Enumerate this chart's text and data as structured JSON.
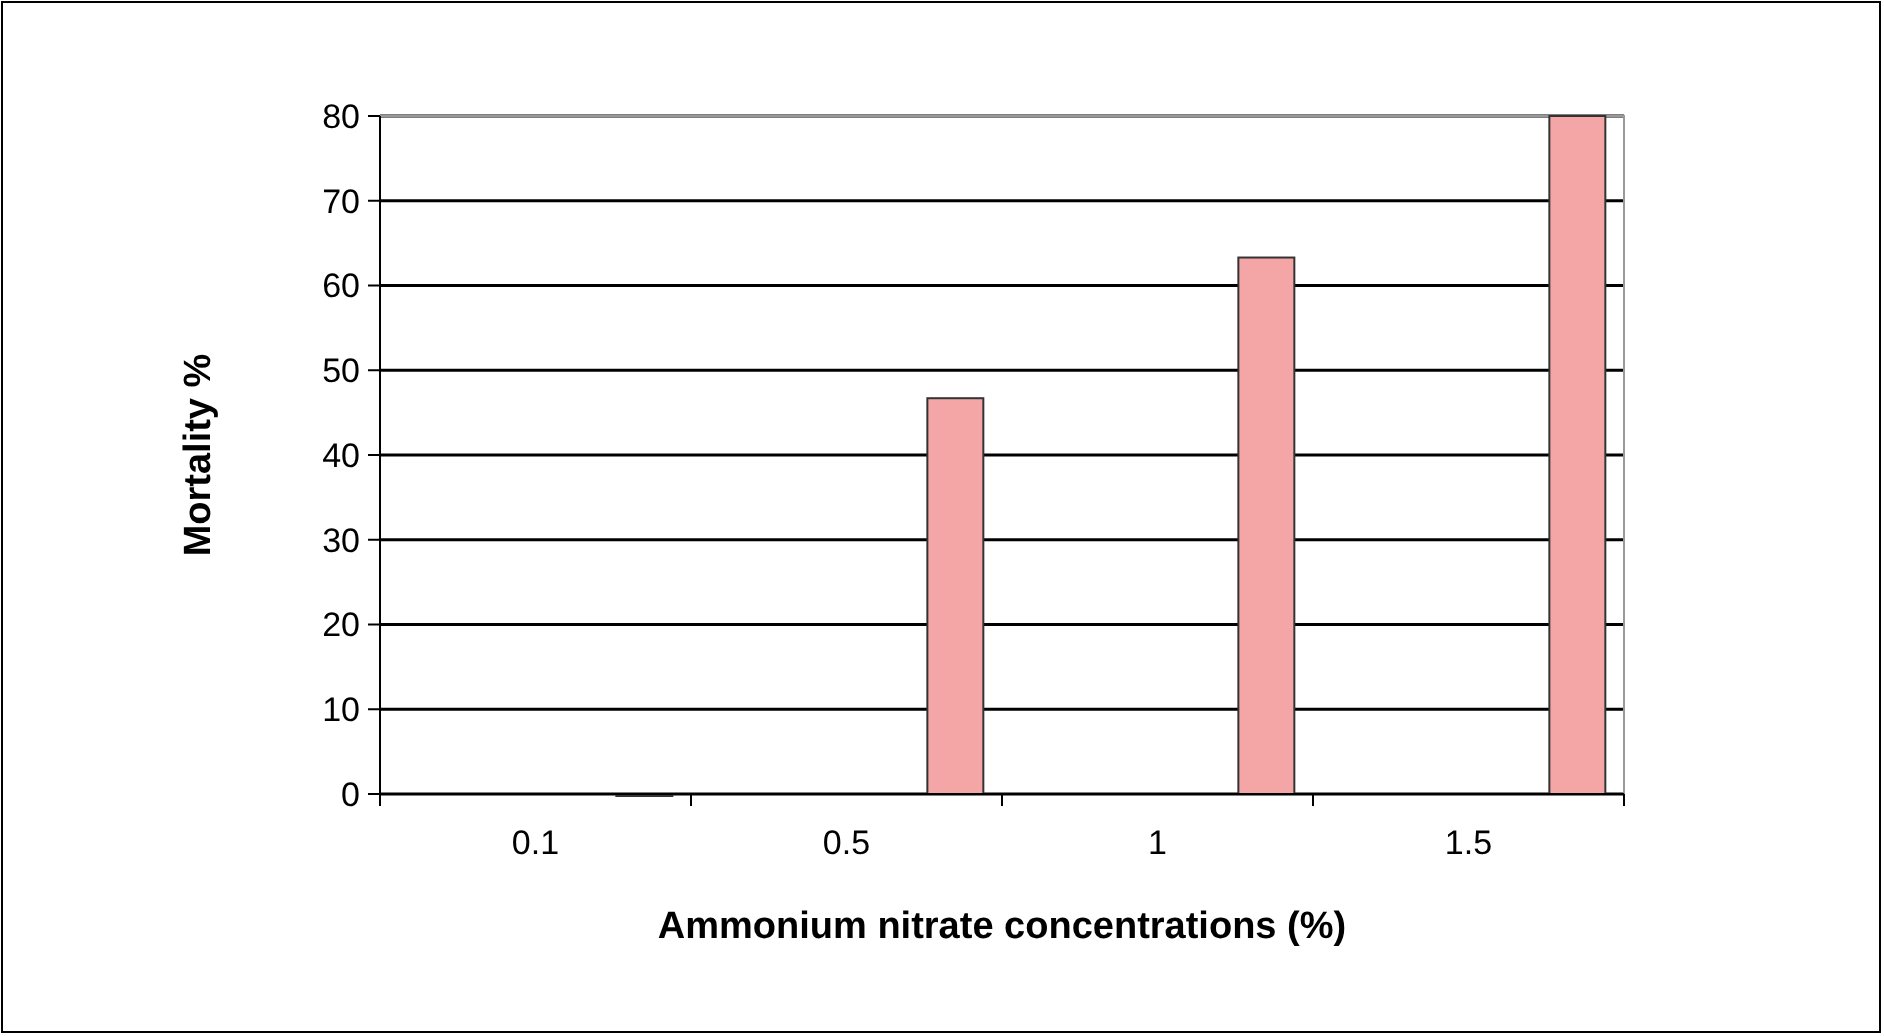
{
  "chart_data": {
    "type": "bar",
    "xlabel": "Ammonium nitrate concentrations (%)",
    "ylabel": "Mortality %",
    "categories": [
      "0.1",
      "0.5",
      "1",
      "1.5"
    ],
    "values": [
      0,
      46.7,
      63.3,
      80
    ],
    "color": "#f4a6a6",
    "ylim": [
      0,
      80
    ],
    "yticks": [
      0,
      10,
      20,
      30,
      40,
      50,
      60,
      70,
      80
    ],
    "grid": "y"
  }
}
